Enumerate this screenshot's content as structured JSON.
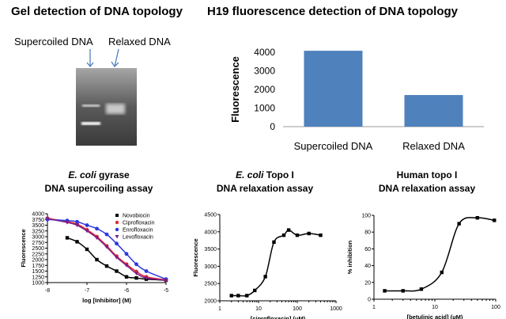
{
  "gel": {
    "title": "Gel detection of DNA topology",
    "label_supercoiled": "Supercoiled DNA",
    "label_relaxed": "Relaxed DNA"
  },
  "h19": {
    "title": "H19 fluorescence detection of DNA topology"
  },
  "panel1": {
    "title_italic": "E. coli",
    "title_rest": " gyrase",
    "subtitle": "DNA supercoiling assay"
  },
  "panel2": {
    "title_italic": "E. coli",
    "title_rest": " Topo I",
    "subtitle": "DNA relaxation assay"
  },
  "panel3": {
    "title": "Human topo I",
    "subtitle": "DNA relaxation assay"
  },
  "colors": {
    "bar": "#4f81bd",
    "novobiocin": "#000000",
    "ciprofloxacin": "#e8262b",
    "enrofloxacin": "#2c38e0",
    "levofloxacin": "#7a1f8c"
  },
  "chart_data": [
    {
      "type": "bar",
      "categories": [
        "Supercoiled DNA",
        "Relaxed DNA"
      ],
      "values": [
        4080,
        1700
      ],
      "ylabel": "Fluorescence",
      "ylim": [
        0,
        4000
      ],
      "yticks": [
        0,
        1000,
        2000,
        3000,
        4000
      ],
      "grid": false
    },
    {
      "type": "scatter",
      "xlabel": "log [Inhibitor] (M)",
      "ylabel": "Fluorescence",
      "xlim": [
        -8,
        -5
      ],
      "ylim": [
        1000,
        4000
      ],
      "xticks": [
        -8,
        -7,
        -6,
        -5
      ],
      "yticks": [
        1000,
        1250,
        1500,
        1750,
        2000,
        2250,
        2500,
        2750,
        3000,
        3250,
        3500,
        3750,
        4000
      ],
      "legend": "top-right",
      "series": [
        {
          "name": "Novobiocin",
          "marker": "square",
          "x": [
            -7.5,
            -7.25,
            -7.0,
            -6.75,
            -6.5,
            -6.25,
            -6.0,
            -5.75,
            -5.5,
            -5.0
          ],
          "y": [
            2950,
            2780,
            2450,
            2000,
            1720,
            1500,
            1250,
            1200,
            1150,
            1100
          ]
        },
        {
          "name": "Ciprofloxacin",
          "marker": "circle",
          "x": [
            -8.0,
            -7.5,
            -7.25,
            -7.0,
            -6.75,
            -6.5,
            -6.25,
            -6.0,
            -5.75,
            -5.5,
            -5.0
          ],
          "y": [
            3800,
            3650,
            3550,
            3300,
            3000,
            2600,
            2150,
            1800,
            1480,
            1250,
            1120
          ]
        },
        {
          "name": "Enrofloxacin",
          "marker": "circle",
          "x": [
            -8.0,
            -7.5,
            -7.25,
            -7.0,
            -6.75,
            -6.5,
            -6.25,
            -6.0,
            -5.75,
            -5.5,
            -5.0
          ],
          "y": [
            3750,
            3700,
            3650,
            3500,
            3350,
            3100,
            2700,
            2250,
            1800,
            1500,
            1150
          ]
        },
        {
          "name": "Levofloxacin",
          "marker": "triangle-down",
          "x": [
            -8.0,
            -7.5,
            -7.25,
            -7.0,
            -6.75,
            -6.5,
            -6.25,
            -6.0,
            -5.75,
            -5.5,
            -5.0
          ],
          "y": [
            3780,
            3620,
            3500,
            3250,
            2950,
            2550,
            2100,
            1750,
            1400,
            1200,
            1100
          ]
        }
      ]
    },
    {
      "type": "scatter",
      "xlabel": "[ciprofloxacin] (μM)",
      "ylabel": "Fluorescence",
      "xscale": "log",
      "xlim": [
        1,
        1000
      ],
      "ylim": [
        2000,
        4500
      ],
      "xticks": [
        1,
        10,
        100,
        1000
      ],
      "yticks": [
        2000,
        2500,
        3000,
        3500,
        4000,
        4500
      ],
      "series": [
        {
          "name": "",
          "marker": "square",
          "x": [
            2,
            3,
            5,
            8,
            15,
            25,
            45,
            60,
            100,
            200,
            400
          ],
          "y": [
            2150,
            2150,
            2150,
            2300,
            2700,
            3700,
            3900,
            4050,
            3900,
            3950,
            3900
          ]
        }
      ]
    },
    {
      "type": "scatter",
      "xlabel": "[betulinic acid] (μM)",
      "ylabel": "% inhibition",
      "xscale": "log",
      "xlim": [
        1,
        100
      ],
      "ylim": [
        0,
        100
      ],
      "xticks": [
        1,
        10,
        100
      ],
      "yticks": [
        0,
        20,
        40,
        60,
        80,
        100
      ],
      "series": [
        {
          "name": "",
          "marker": "square",
          "x": [
            1.5,
            3,
            6,
            13,
            25,
            50,
            95
          ],
          "y": [
            10,
            10,
            12,
            32,
            90,
            97,
            94
          ]
        }
      ]
    }
  ]
}
